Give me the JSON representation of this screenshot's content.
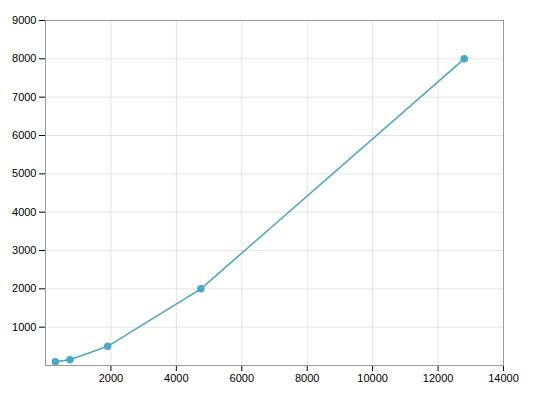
{
  "chart_data": {
    "type": "line",
    "x": [
      300,
      750,
      1900,
      4750,
      12800
    ],
    "values": [
      100,
      150,
      500,
      2000,
      8000
    ],
    "color": "#4da6c8",
    "marker": "circle",
    "xlim": [
      0,
      14000
    ],
    "ylim": [
      0,
      9000
    ],
    "xticks": [
      2000,
      4000,
      6000,
      8000,
      10000,
      12000,
      14000
    ],
    "yticks": [
      1000,
      2000,
      3000,
      4000,
      5000,
      6000,
      7000,
      8000,
      9000
    ],
    "grid": true
  }
}
